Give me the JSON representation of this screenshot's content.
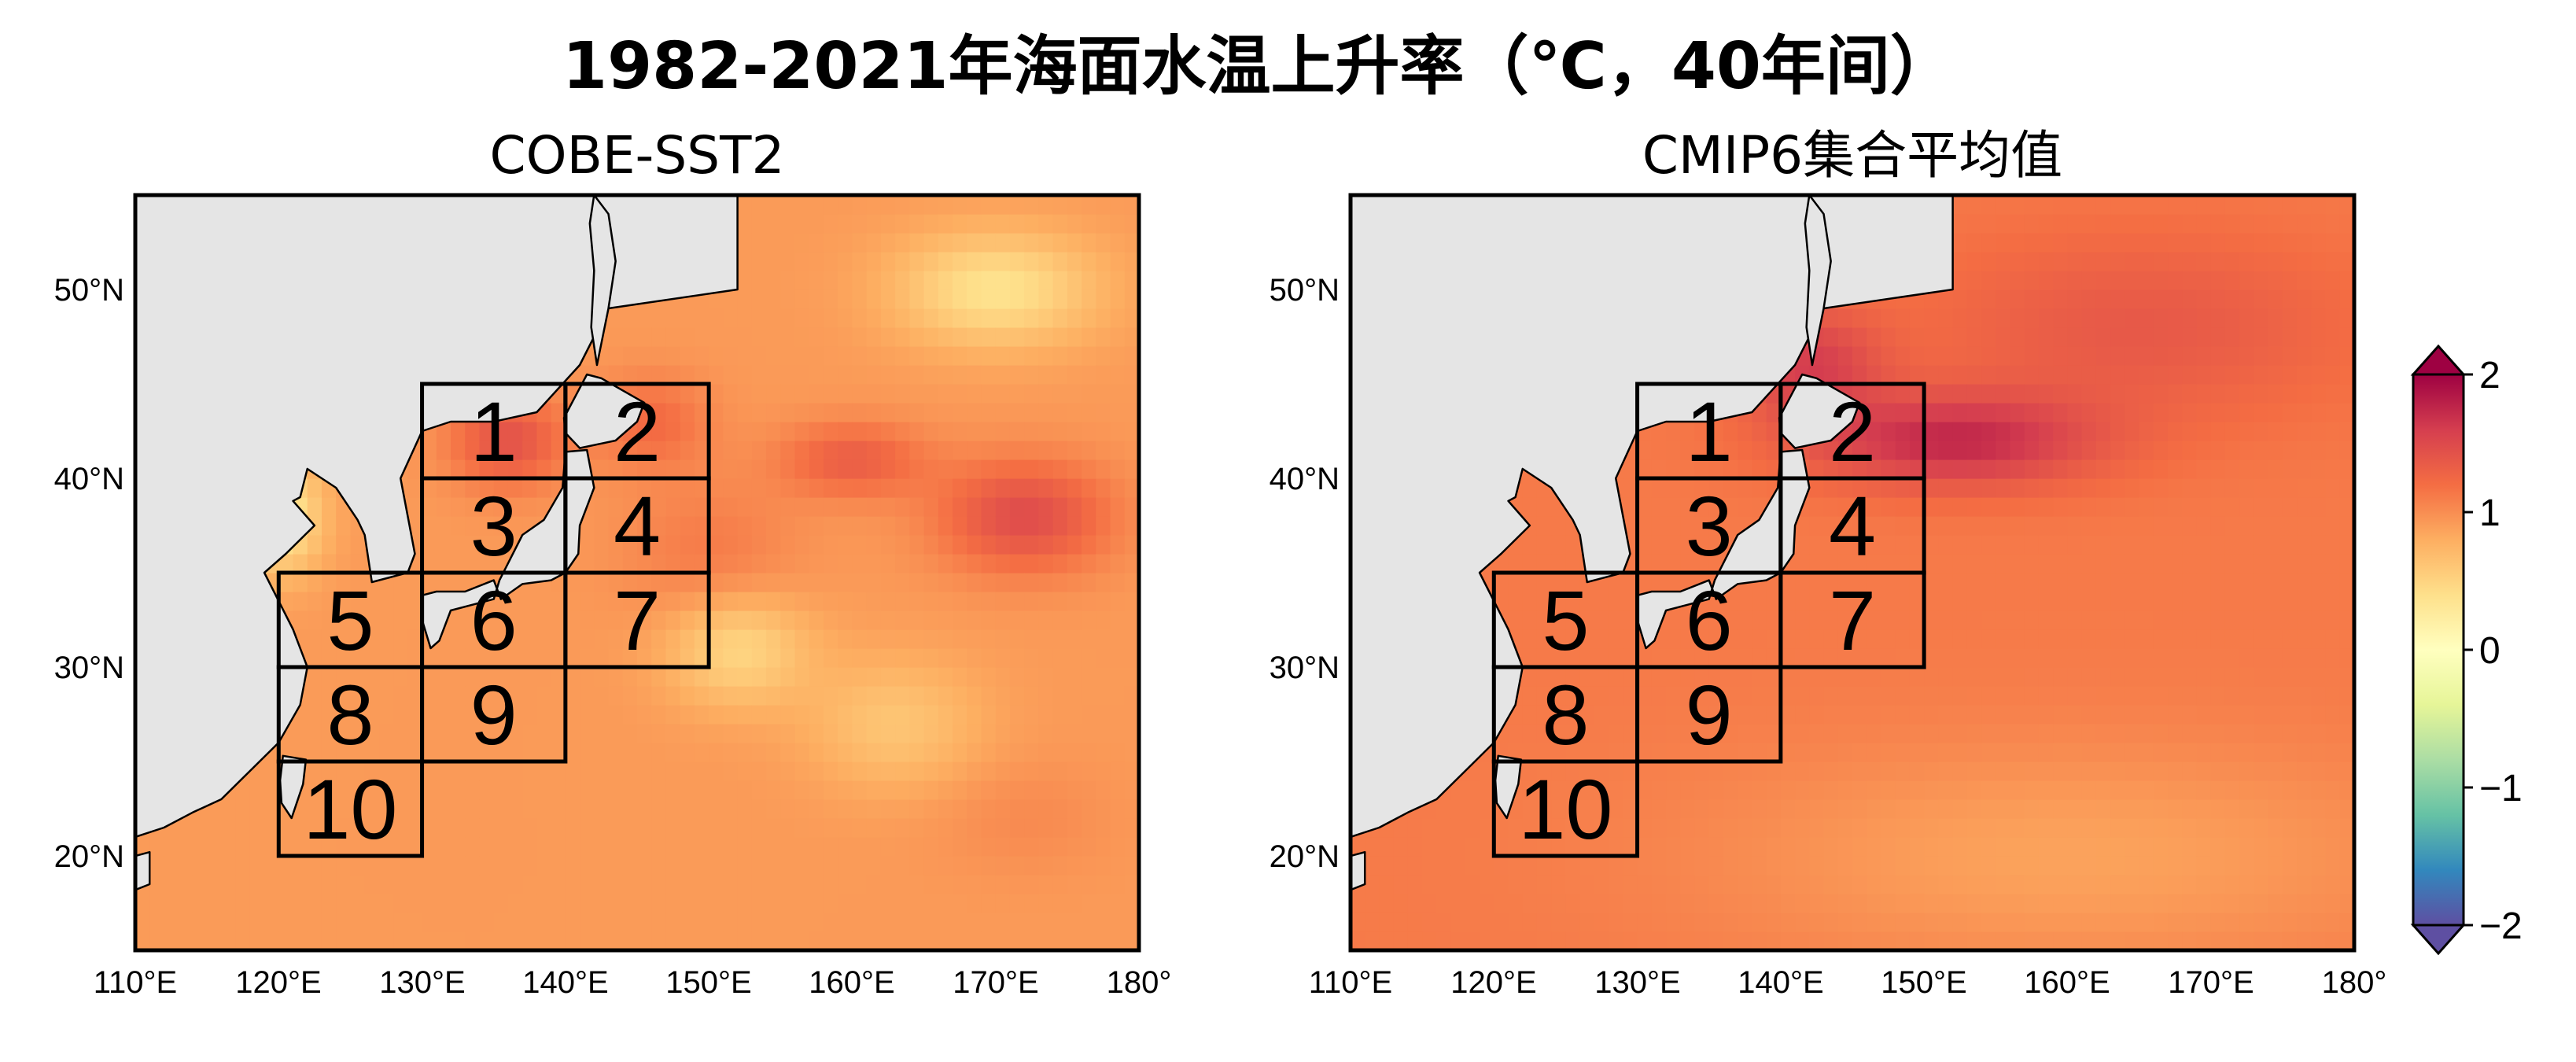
{
  "title": "1982-2021年海面水温上升率（℃，40年间）",
  "panels": [
    {
      "title": "COBE-SST2",
      "field": "obs"
    },
    {
      "title": "CMIP6集合平均值",
      "field": "model"
    }
  ],
  "map_extent": {
    "lon": [
      110,
      180
    ],
    "lat": [
      15,
      55
    ]
  },
  "x_ticks": [
    "110°E",
    "120°E",
    "130°E",
    "140°E",
    "150°E",
    "160°E",
    "170°E",
    "180°"
  ],
  "y_ticks": [
    "20°N",
    "30°N",
    "40°N",
    "50°N"
  ],
  "colorbar": {
    "min": -2,
    "max": 2,
    "colormap": "Spectral_r",
    "extend": "both",
    "ticks": [
      "2",
      "1",
      "0",
      "−1",
      "−2"
    ]
  },
  "land_color": "#e5e5e5",
  "boxes": [
    {
      "label": "1",
      "lon": [
        130,
        140
      ],
      "lat": [
        40,
        45
      ]
    },
    {
      "label": "2",
      "lon": [
        140,
        150
      ],
      "lat": [
        40,
        45
      ]
    },
    {
      "label": "3",
      "lon": [
        130,
        140
      ],
      "lat": [
        35,
        40
      ]
    },
    {
      "label": "4",
      "lon": [
        140,
        150
      ],
      "lat": [
        35,
        40
      ]
    },
    {
      "label": "5",
      "lon": [
        120,
        130
      ],
      "lat": [
        30,
        35
      ]
    },
    {
      "label": "6",
      "lon": [
        130,
        140
      ],
      "lat": [
        30,
        35
      ]
    },
    {
      "label": "7",
      "lon": [
        140,
        150
      ],
      "lat": [
        30,
        35
      ]
    },
    {
      "label": "8",
      "lon": [
        120,
        130
      ],
      "lat": [
        25,
        30
      ]
    },
    {
      "label": "9",
      "lon": [
        130,
        140
      ],
      "lat": [
        25,
        30
      ]
    },
    {
      "label": "10",
      "lon": [
        120,
        130
      ],
      "lat": [
        20,
        25
      ]
    }
  ]
}
